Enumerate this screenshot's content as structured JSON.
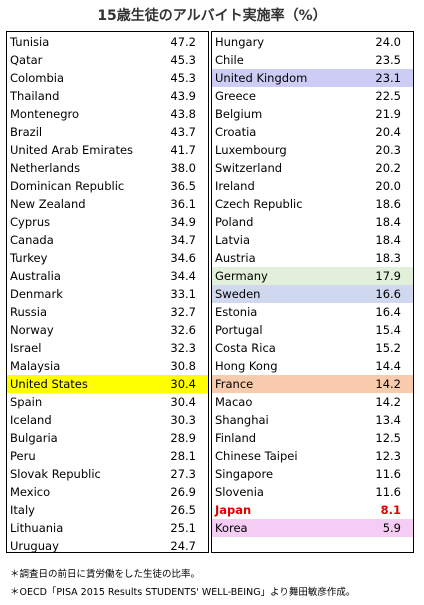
{
  "chart_data": {
    "type": "table",
    "title": "15歳生徒のアルバイト実施率（%）",
    "columns": [
      [
        {
          "country": "Tunisia",
          "value": "47.2"
        },
        {
          "country": "Qatar",
          "value": "45.3"
        },
        {
          "country": "Colombia",
          "value": "45.3"
        },
        {
          "country": "Thailand",
          "value": "43.9"
        },
        {
          "country": "Montenegro",
          "value": "43.8"
        },
        {
          "country": "Brazil",
          "value": "43.7"
        },
        {
          "country": "United Arab Emirates",
          "value": "41.7"
        },
        {
          "country": "Netherlands",
          "value": "38.0"
        },
        {
          "country": "Dominican Republic",
          "value": "36.5"
        },
        {
          "country": "New Zealand",
          "value": "36.1"
        },
        {
          "country": "Cyprus",
          "value": "34.9"
        },
        {
          "country": "Canada",
          "value": "34.7"
        },
        {
          "country": "Turkey",
          "value": "34.6"
        },
        {
          "country": "Australia",
          "value": "34.4"
        },
        {
          "country": "Denmark",
          "value": "33.1"
        },
        {
          "country": "Russia",
          "value": "32.7"
        },
        {
          "country": "Norway",
          "value": "32.6"
        },
        {
          "country": "Israel",
          "value": "32.3"
        },
        {
          "country": "Malaysia",
          "value": "30.8"
        },
        {
          "country": "United States",
          "value": "30.4",
          "highlight": "#ffff00"
        },
        {
          "country": "Spain",
          "value": "30.4"
        },
        {
          "country": "Iceland",
          "value": "30.3"
        },
        {
          "country": "Bulgaria",
          "value": "28.9"
        },
        {
          "country": "Peru",
          "value": "28.1"
        },
        {
          "country": "Slovak Republic",
          "value": "27.3"
        },
        {
          "country": "Mexico",
          "value": "26.9"
        },
        {
          "country": "Italy",
          "value": "26.5"
        },
        {
          "country": "Lithuania",
          "value": "25.1"
        },
        {
          "country": "Uruguay",
          "value": "24.7"
        }
      ],
      [
        {
          "country": "Hungary",
          "value": "24.0"
        },
        {
          "country": "Chile",
          "value": "23.5"
        },
        {
          "country": "United Kingdom",
          "value": "23.1",
          "highlight": "#ccccf4"
        },
        {
          "country": "Greece",
          "value": "22.5"
        },
        {
          "country": "Belgium",
          "value": "21.9"
        },
        {
          "country": "Croatia",
          "value": "20.4"
        },
        {
          "country": "Luxembourg",
          "value": "20.3"
        },
        {
          "country": "Switzerland",
          "value": "20.2"
        },
        {
          "country": "Ireland",
          "value": "20.0"
        },
        {
          "country": "Czech Republic",
          "value": "18.6"
        },
        {
          "country": "Poland",
          "value": "18.4"
        },
        {
          "country": "Latvia",
          "value": "18.4"
        },
        {
          "country": "Austria",
          "value": "18.3"
        },
        {
          "country": "Germany",
          "value": "17.9",
          "highlight": "#e2efda"
        },
        {
          "country": "Sweden",
          "value": "16.6",
          "highlight": "#d0d8f0"
        },
        {
          "country": "Estonia",
          "value": "16.4"
        },
        {
          "country": "Portugal",
          "value": "15.4"
        },
        {
          "country": "Costa Rica",
          "value": "15.2"
        },
        {
          "country": "Hong Kong",
          "value": "14.4"
        },
        {
          "country": "France",
          "value": "14.2",
          "highlight": "#f8cbad"
        },
        {
          "country": "Macao",
          "value": "14.2"
        },
        {
          "country": "Shanghai",
          "value": "13.4"
        },
        {
          "country": "Finland",
          "value": "12.5"
        },
        {
          "country": "Chinese Taipei",
          "value": "12.3"
        },
        {
          "country": "Singapore",
          "value": "11.6"
        },
        {
          "country": "Slovenia",
          "value": "11.6"
        },
        {
          "country": "Japan",
          "value": "8.1",
          "text_color": "#e00000"
        },
        {
          "country": "Korea",
          "value": "5.9",
          "highlight": "#f4ccf4"
        }
      ]
    ]
  },
  "notes": [
    "＊調査日の前日に賃労働をした生徒の比率。",
    "＊OECD「PISA 2015 Results STUDENTS' WELL-BEING」より舞田敏彦作成。"
  ]
}
